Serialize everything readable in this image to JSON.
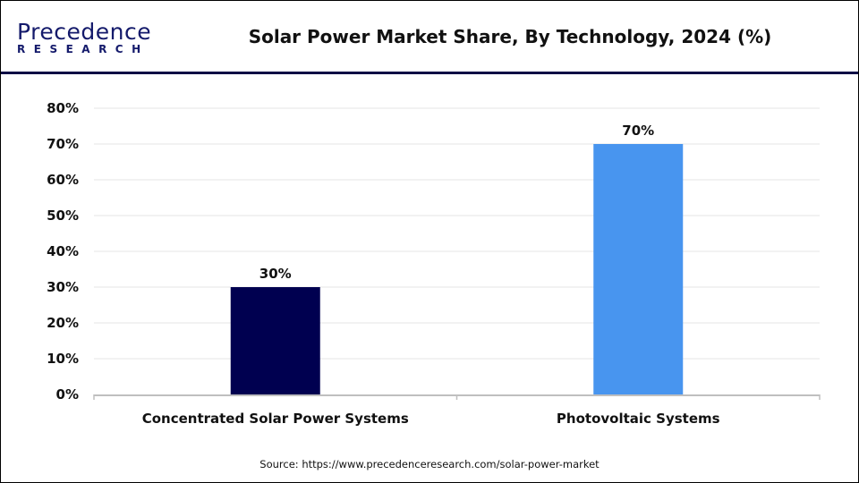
{
  "logo": {
    "line1": "Precedence",
    "line2": "RESEARCH"
  },
  "title": "Solar Power Market Share, By Technology, 2024 (%)",
  "source": "Source: https://www.precedenceresearch.com/solar-power-market",
  "colors": {
    "header_rule": "#0b0b45",
    "csp": "#000050",
    "pv": "#4895ef",
    "grid": "#e6e6e6",
    "axis": "#bfbfbf"
  },
  "chart_data": {
    "type": "bar",
    "title": "Solar Power Market Share, By Technology, 2024 (%)",
    "categories": [
      "Concentrated Solar Power Systems",
      "Photovoltaic Systems"
    ],
    "values": [
      30,
      70
    ],
    "data_labels": [
      "30%",
      "70%"
    ],
    "bar_colors": [
      "#000050",
      "#4895ef"
    ],
    "ylim": [
      0,
      80
    ],
    "yticks": [
      0,
      10,
      20,
      30,
      40,
      50,
      60,
      70,
      80
    ],
    "ytick_labels": [
      "0%",
      "10%",
      "20%",
      "30%",
      "40%",
      "50%",
      "60%",
      "70%",
      "80%"
    ],
    "xlabel": "",
    "ylabel": "",
    "grid": true,
    "legend": "none"
  }
}
